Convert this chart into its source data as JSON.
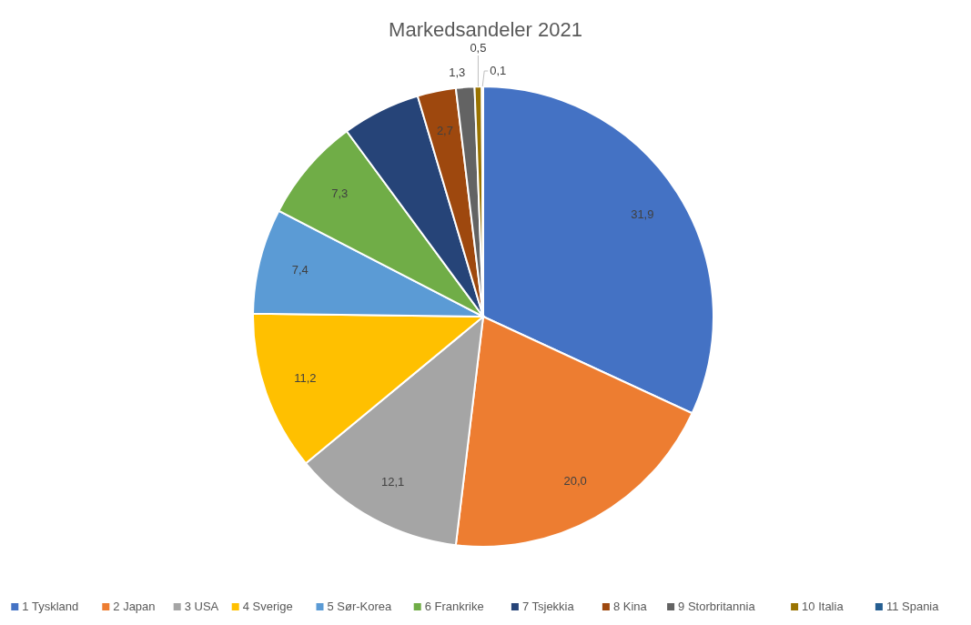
{
  "chart_data": {
    "type": "pie",
    "title": "Markedsandeler 2021",
    "categories": [
      "1 Tyskland",
      "2 Japan",
      "3 USA",
      "4 Sverige",
      "5 Sør-Korea",
      "6 Frankrike",
      "7 Tsjekkia",
      "8 Kina",
      "9 Storbritannia",
      "10 Italia",
      "11 Spania"
    ],
    "values": [
      31.9,
      20.0,
      12.1,
      11.2,
      7.4,
      7.3,
      5.5,
      2.7,
      1.3,
      0.5,
      0.1
    ],
    "value_labels": [
      "31,9",
      "20,0",
      "12,1",
      "11,2",
      "7,4",
      "7,3",
      null,
      "2,7",
      "1,3",
      "0,5",
      "0,1"
    ],
    "colors": [
      "#4472c4",
      "#ed7d31",
      "#a5a5a5",
      "#ffc000",
      "#5b9bd5",
      "#70ad47",
      "#264478",
      "#9e480e",
      "#636363",
      "#997300",
      "#255e91"
    ],
    "legend": "bottom"
  }
}
